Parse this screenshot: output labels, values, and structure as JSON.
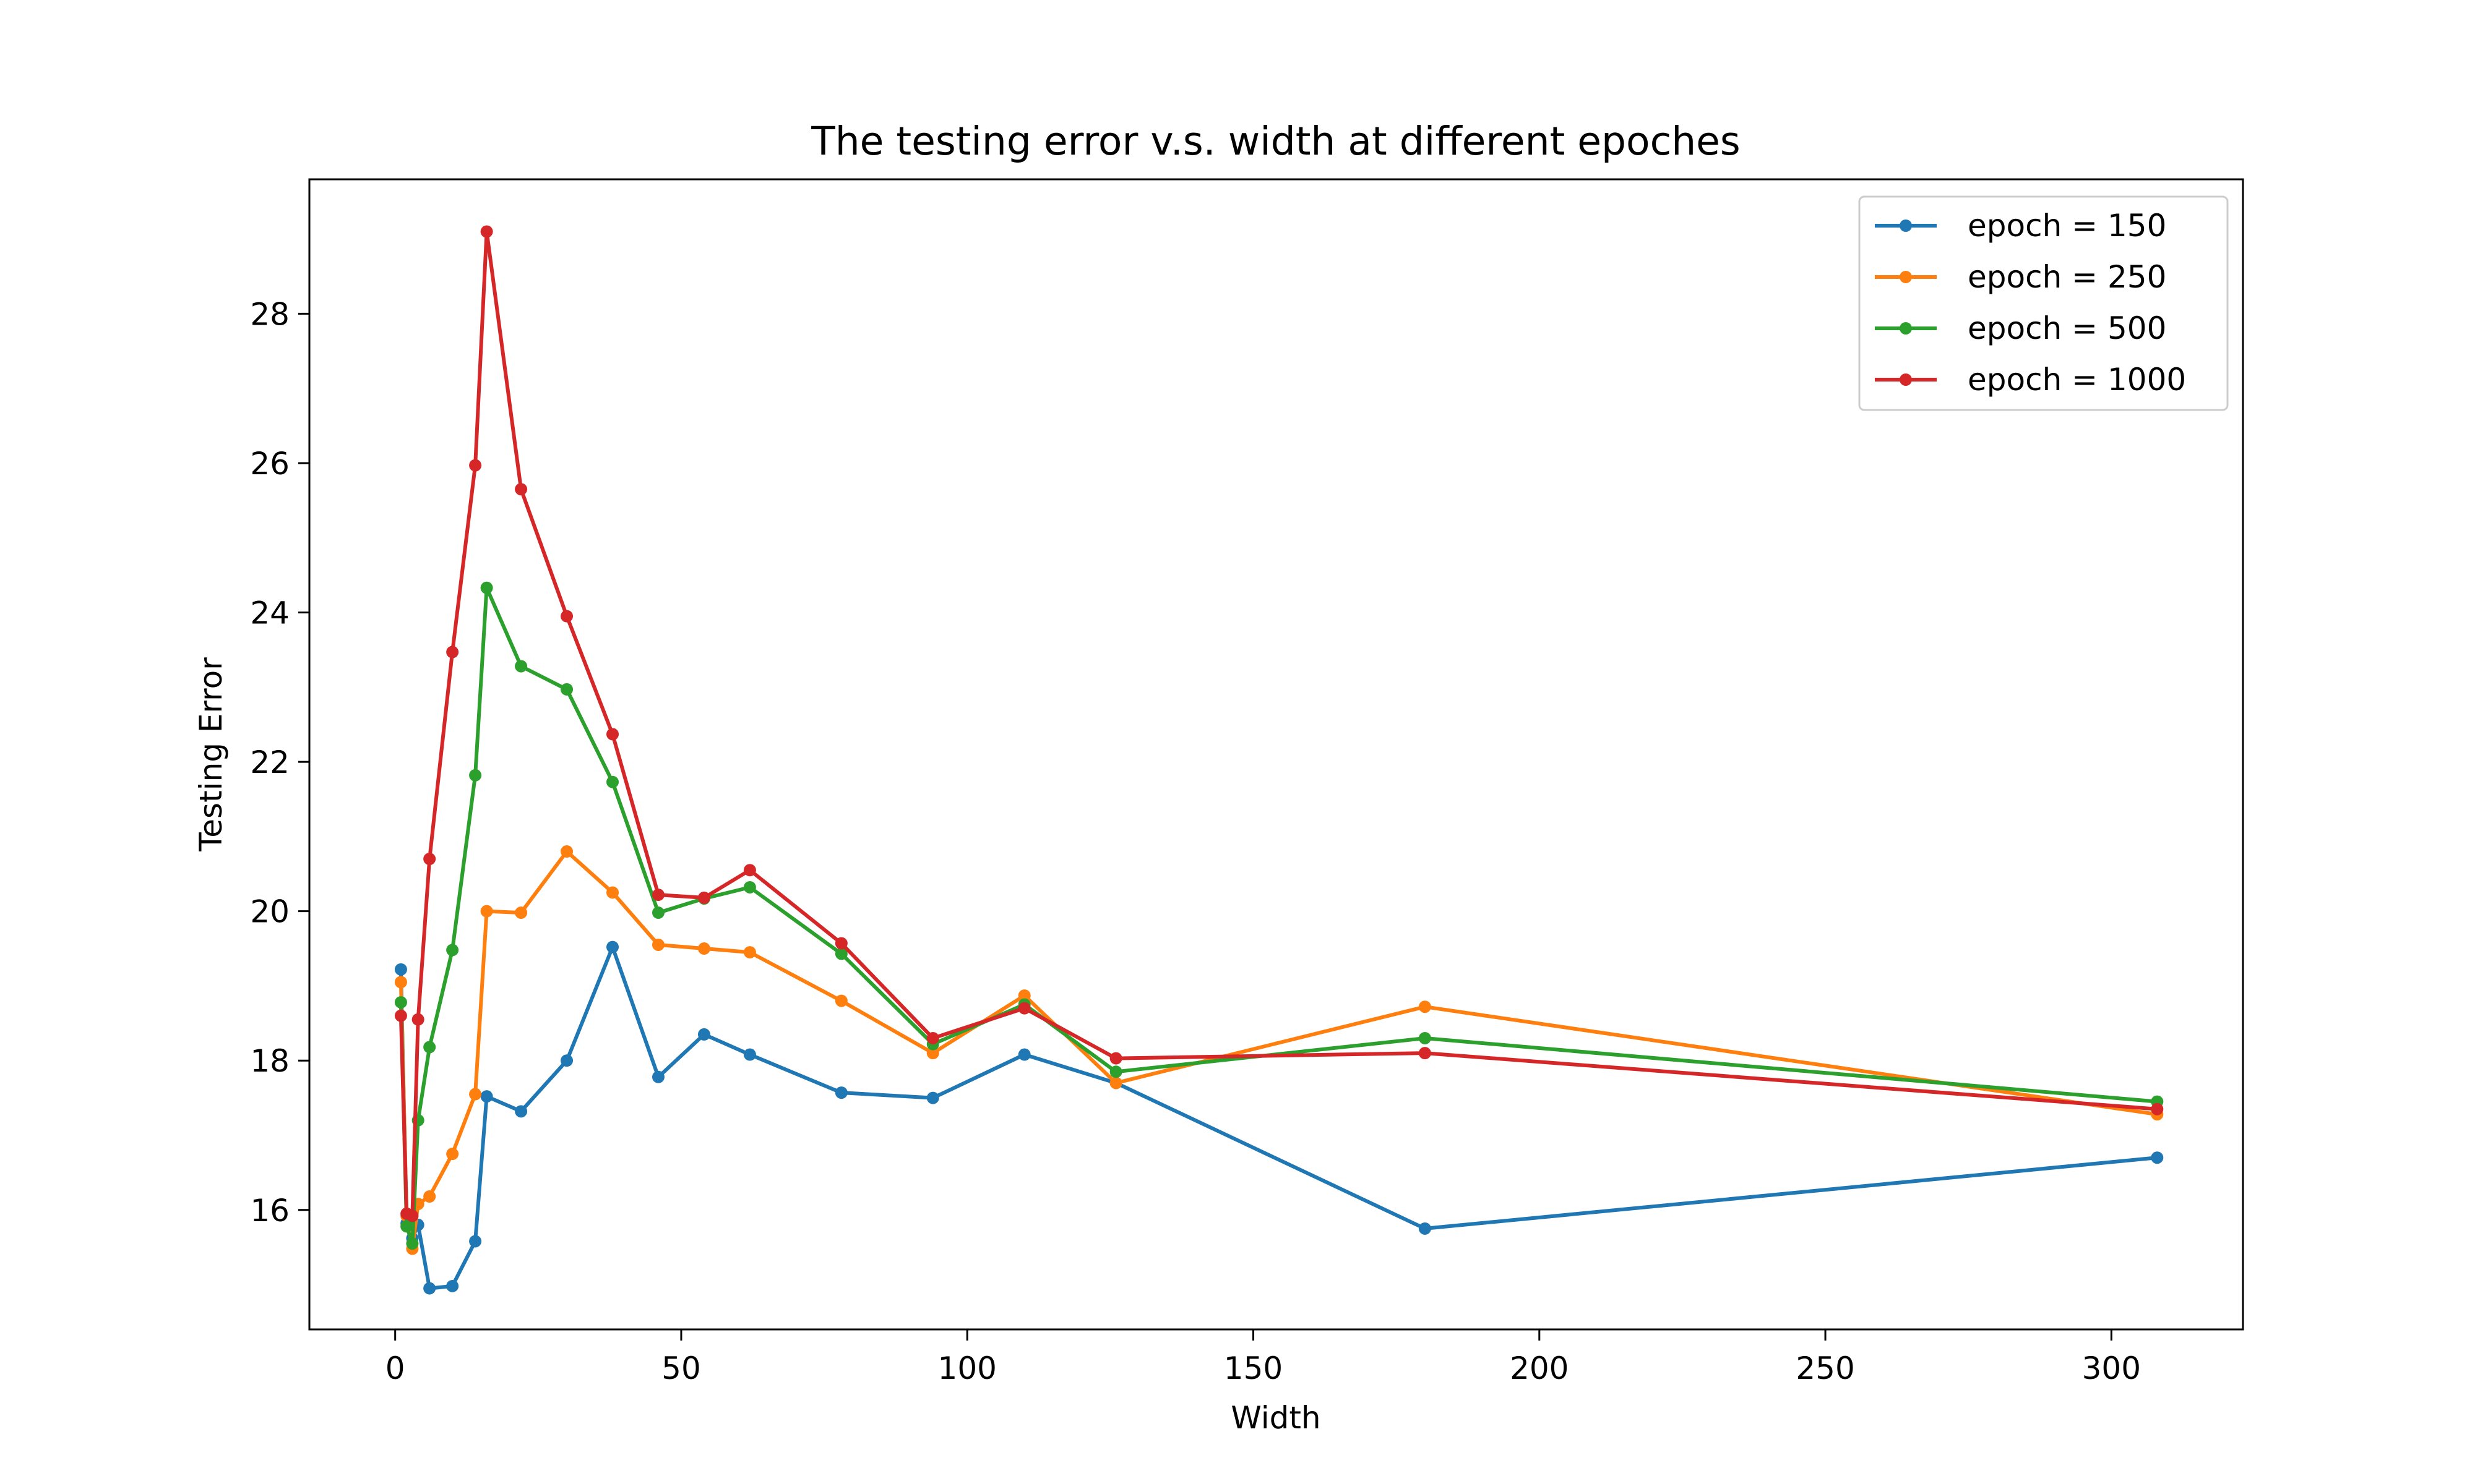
{
  "chart_data": {
    "type": "line",
    "title": "The testing error v.s. width at different epoches",
    "xlabel": "Width",
    "ylabel": "Testing Error",
    "xlim": [
      -15,
      323
    ],
    "ylim": [
      14.4,
      29.8
    ],
    "xticks": [
      0,
      50,
      100,
      150,
      200,
      250,
      300
    ],
    "yticks": [
      16,
      18,
      20,
      22,
      24,
      26,
      28
    ],
    "grid": false,
    "legend_position": "top-right",
    "x": [
      1,
      2,
      3,
      4,
      6,
      10,
      14,
      16,
      22,
      30,
      38,
      46,
      54,
      62,
      78,
      94,
      110,
      126,
      180,
      308
    ],
    "series": [
      {
        "name": "epoch = 150",
        "color": "#1f77b4",
        "values": [
          19.22,
          15.82,
          15.62,
          15.8,
          14.95,
          14.98,
          15.58,
          17.52,
          17.32,
          18.0,
          19.52,
          17.78,
          18.35,
          18.08,
          17.57,
          17.5,
          18.08,
          17.7,
          15.75,
          16.7
        ]
      },
      {
        "name": "epoch = 250",
        "color": "#ff7f0e",
        "values": [
          19.05,
          15.92,
          15.48,
          16.08,
          16.18,
          16.75,
          17.55,
          20.0,
          19.98,
          20.8,
          20.25,
          19.55,
          19.5,
          19.45,
          18.8,
          18.1,
          18.87,
          17.7,
          18.72,
          17.28
        ]
      },
      {
        "name": "epoch = 500",
        "color": "#2ca02c",
        "values": [
          18.78,
          15.78,
          15.55,
          17.2,
          18.18,
          19.48,
          21.82,
          24.33,
          23.28,
          22.97,
          21.73,
          19.98,
          20.17,
          20.32,
          19.43,
          18.22,
          18.75,
          17.85,
          18.3,
          17.45
        ]
      },
      {
        "name": "epoch = 1000",
        "color": "#d62728",
        "values": [
          18.6,
          15.95,
          15.92,
          18.55,
          20.7,
          23.47,
          25.97,
          29.1,
          25.65,
          23.95,
          22.37,
          20.22,
          20.18,
          20.55,
          19.57,
          18.3,
          18.7,
          18.03,
          18.1,
          17.35
        ]
      }
    ]
  }
}
